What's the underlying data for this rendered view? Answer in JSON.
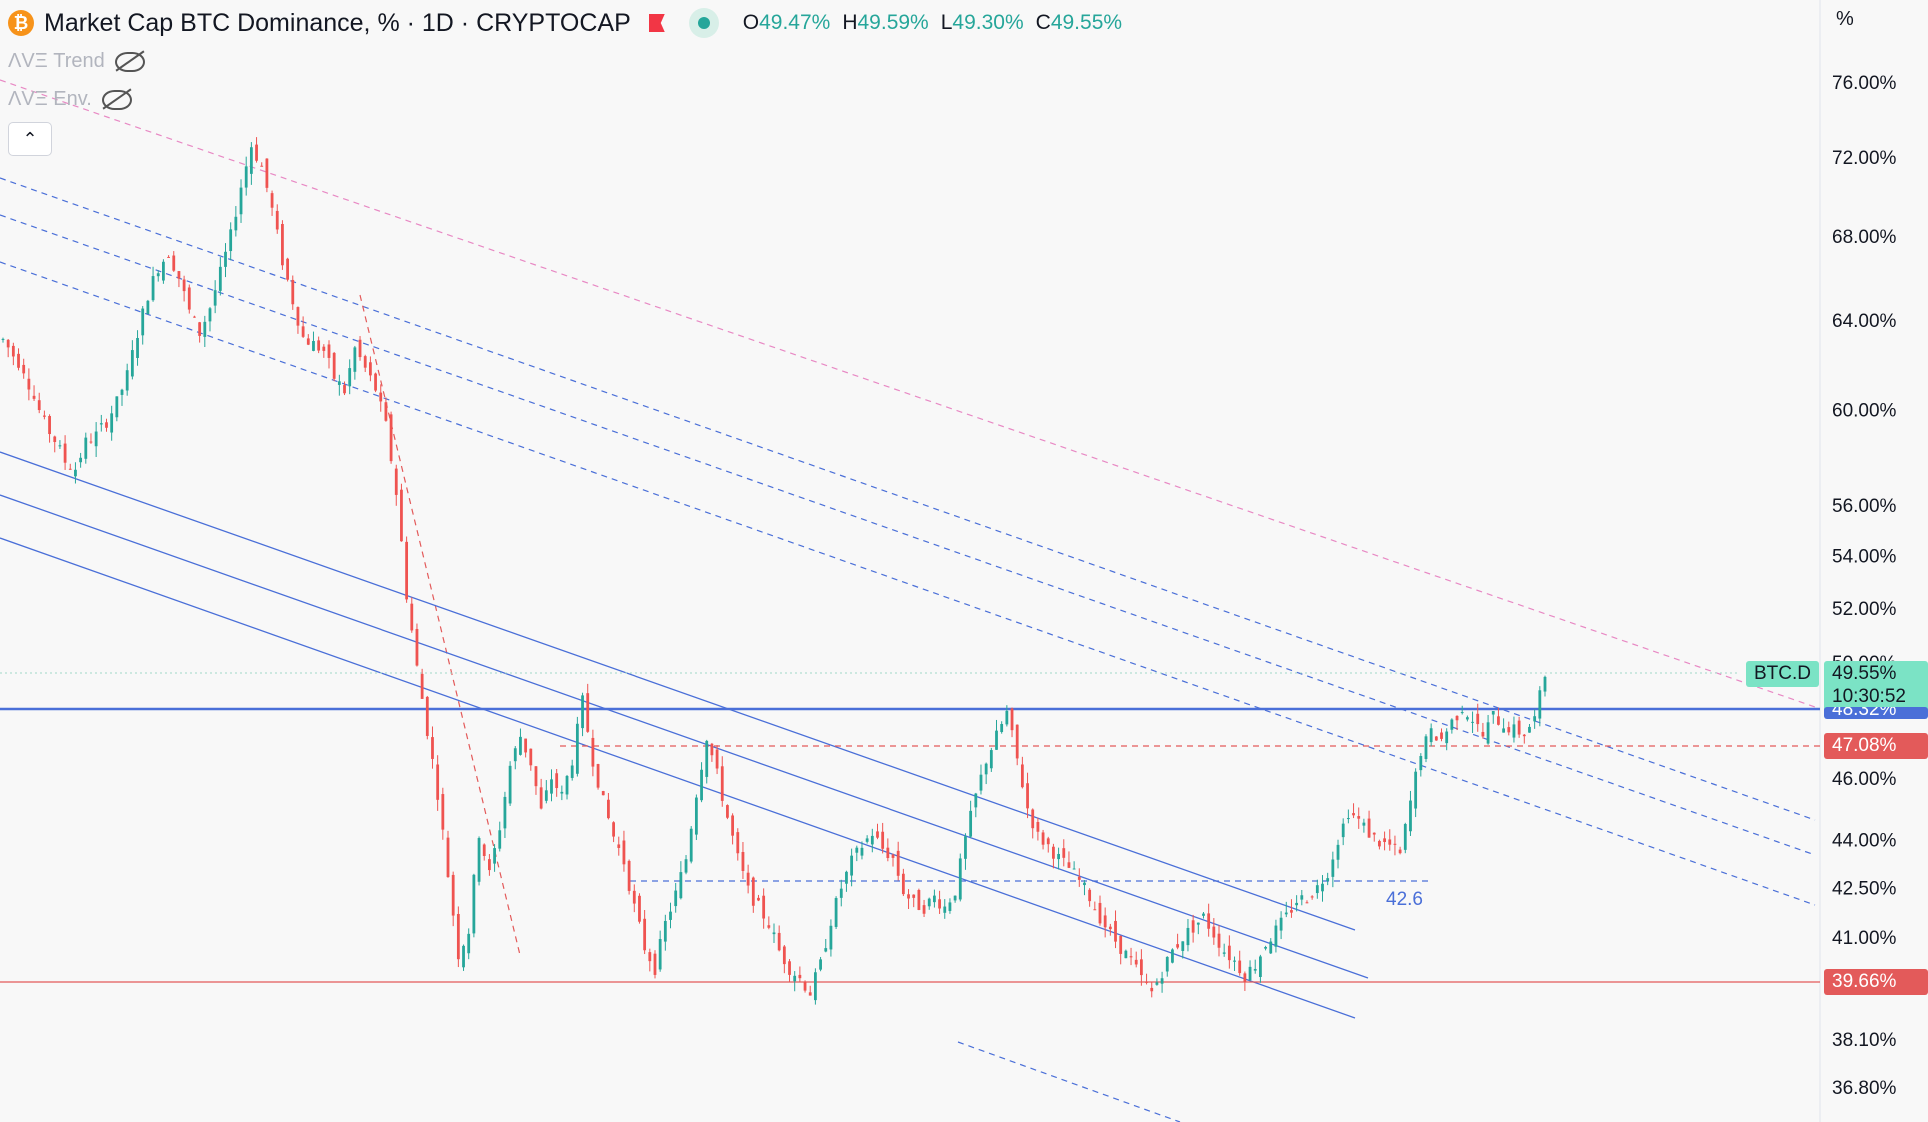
{
  "header": {
    "title": "Market Cap BTC Dominance, % · 1D · CRYPTOCAP",
    "ohlc": [
      {
        "key": "O",
        "value": "49.47%"
      },
      {
        "key": "H",
        "value": "49.59%"
      },
      {
        "key": "L",
        "value": "49.30%"
      },
      {
        "key": "C",
        "value": "49.55%"
      }
    ]
  },
  "indicators": [
    {
      "label": "ΛVΞ Trend",
      "icon": "eye-off-icon"
    },
    {
      "label": "ΛVΞ Env.",
      "icon": "eye-off-icon"
    }
  ],
  "collapse_label": "⌃",
  "axis": {
    "unit": "%"
  },
  "price_tags": {
    "symbol": "BTC.D",
    "last_price": "49.55%",
    "countdown": "10:30:52",
    "level_blue": "48.32%",
    "level_red_1": "47.08%",
    "level_red_2": "39.66%"
  },
  "colors": {
    "up": "#26a69a",
    "down": "#ef5350",
    "blue": "#4a6fd8",
    "red": "#e35a5a",
    "pink": "#e889c4",
    "tag_green": "#7be3c5"
  },
  "chart_data": {
    "type": "candlestick",
    "yscale": "log",
    "y_ticks": [
      76.0,
      72.0,
      68.0,
      64.0,
      60.0,
      56.0,
      54.0,
      52.0,
      50.0,
      46.0,
      44.0,
      42.5,
      41.0,
      38.1,
      36.8
    ],
    "y_tick_labels": [
      "76.00%",
      "72.00%",
      "68.00%",
      "64.00%",
      "60.00%",
      "56.00%",
      "54.00%",
      "52.00%",
      "50.00%",
      "46.00%",
      "44.00%",
      "42.50%",
      "41.00%",
      "38.10%",
      "36.80%"
    ],
    "annotations": [
      {
        "text": "42.6",
        "value": 42.6
      }
    ],
    "horizontal_levels": [
      {
        "value": 48.32,
        "color": "#4a6fd8",
        "style": "solid"
      },
      {
        "value": 47.08,
        "color": "#e35a5a",
        "style": "dashed"
      },
      {
        "value": 39.66,
        "color": "#e35a5a",
        "style": "solid"
      },
      {
        "value": 42.6,
        "color": "#4a6fd8",
        "style": "dashed"
      }
    ],
    "series": [
      {
        "close": [
          63.1,
          62.4,
          61.8,
          60.5,
          59.4,
          58.7,
          57.8,
          57.5,
          58.6,
          58.9,
          59.5,
          60.3,
          61.5,
          63.4,
          65.2,
          66.5,
          67.2,
          66.0,
          64.4,
          63.4,
          64.6,
          66.2,
          68.0,
          70.5,
          72.6,
          71.5,
          69.3,
          66.8,
          64.9,
          63.2,
          62.9,
          62.6,
          61.4,
          60.8,
          62.7,
          61.8,
          60.9,
          59.3,
          56.5,
          52.5,
          49.8,
          47.6,
          45.5,
          42.9,
          40.5,
          41.2,
          44.2,
          42.9,
          44.4,
          46.4,
          47.4,
          46.5,
          44.9,
          46.0,
          45.4,
          46.6,
          48.6,
          46.6,
          45.2,
          44.1,
          43.3,
          41.9,
          40.7,
          40.1,
          41.4,
          42.3,
          43.4,
          45.5,
          47.4,
          46.1,
          44.7,
          43.4,
          42.4,
          41.9,
          41.4,
          40.6,
          40.1,
          39.8,
          39.4,
          40.2,
          41.5,
          42.5,
          43.3,
          43.8,
          44.2,
          43.7,
          43.4,
          42.4,
          42.0,
          41.9,
          42.2,
          41.9,
          42.4,
          44.0,
          45.4,
          46.6,
          47.4,
          48.2,
          46.6,
          45.0,
          44.1,
          43.8,
          43.4,
          43.1,
          42.7,
          42.2,
          41.6,
          41.1,
          40.7,
          40.3,
          39.8,
          39.4,
          40.0,
          40.6,
          41.0,
          41.3,
          41.6,
          41.1,
          40.6,
          40.3,
          39.9,
          40.2,
          40.8,
          41.2,
          41.6,
          42.1,
          42.2,
          42.5,
          43.0,
          44.0,
          44.9,
          44.6,
          44.2,
          43.9,
          43.8,
          43.5,
          45.2,
          46.9,
          47.5,
          47.3,
          47.9,
          48.4,
          48.0,
          47.4,
          48.1,
          47.8,
          47.6,
          47.5,
          48.0,
          49.55
        ]
      }
    ]
  }
}
